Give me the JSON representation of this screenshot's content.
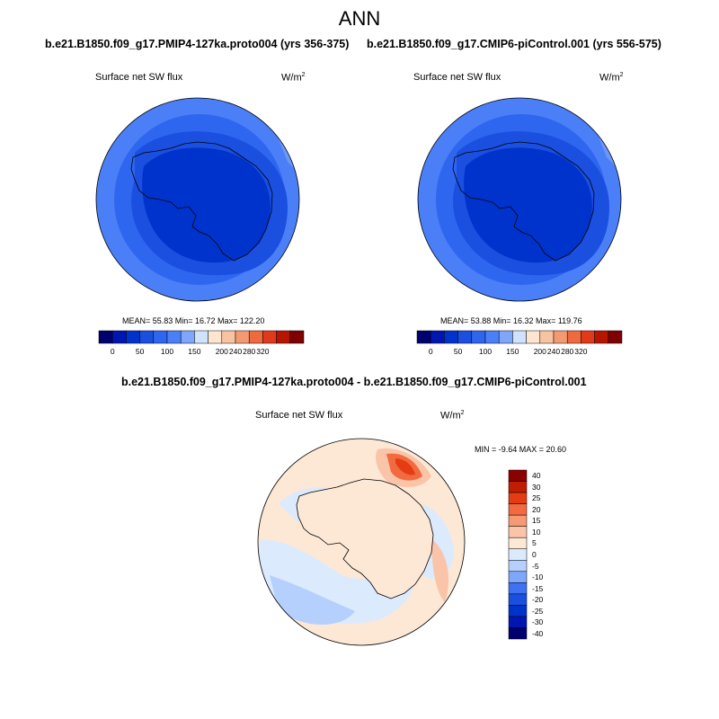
{
  "title": "ANN",
  "panels": [
    {
      "header": "b.e21.B1850.f09_g17.PMIP4-127ka.proto004 (yrs 356-375)",
      "variable": "Surface net SW flux",
      "units_base": "W/m",
      "units_exp": "2",
      "stats": "MEAN=  55.83  Min=  16.72  Max= 122.20"
    },
    {
      "header": "b.e21.B1850.f09_g17.CMIP6-piControl.001 (yrs 556-575)",
      "variable": "Surface net SW flux",
      "units_base": "W/m",
      "units_exp": "2",
      "stats": "MEAN=  53.88  Min=  16.32  Max= 119.76"
    },
    {
      "header": "b.e21.B1850.f09_g17.PMIP4-127ka.proto004 - b.e21.B1850.f09_g17.CMIP6-piControl.001",
      "variable": "Surface net SW flux",
      "units_base": "W/m",
      "units_exp": "2",
      "stats": "MIN = -9.64 MAX =  20.60"
    }
  ],
  "colorbars": {
    "abs_colors": [
      "#00006e",
      "#0016b3",
      "#0033cc",
      "#1a4fe0",
      "#2f66f0",
      "#4a7ff7",
      "#7ea6fb",
      "#cfe3ff",
      "#fde5cf",
      "#f8c3a1",
      "#f39a72",
      "#ef6a3f",
      "#e03a1a",
      "#b81500",
      "#7f0000"
    ],
    "abs_tick_labels": [
      "0",
      "50",
      "100",
      "150",
      "200",
      "240",
      "280",
      "320"
    ],
    "diff_colors": [
      "#00006e",
      "#0016b3",
      "#0033cc",
      "#1a4fe0",
      "#3f72f2",
      "#7ea6fb",
      "#b5d0fc",
      "#dbeafd",
      "#fde8d6",
      "#f9c4a8",
      "#f59a74",
      "#f26a3f",
      "#e63c13",
      "#c01e00",
      "#8b0000"
    ],
    "diff_tick_labels": [
      "-40",
      "-30",
      "-25",
      "-20",
      "-15",
      "-10",
      "-5",
      "0",
      "5",
      "10",
      "15",
      "20",
      "25",
      "30",
      "40"
    ]
  },
  "chart_data": [
    {
      "type": "heatmap",
      "title": "Surface net SW flux",
      "units": "W/m2",
      "projection": "south polar stereographic",
      "mean": 55.83,
      "min": 16.72,
      "max": 122.2,
      "contour_levels": [
        0,
        25,
        50,
        75,
        100,
        125,
        150,
        175,
        200,
        220,
        240,
        260,
        280,
        300,
        320
      ]
    },
    {
      "type": "heatmap",
      "title": "Surface net SW flux",
      "units": "W/m2",
      "projection": "south polar stereographic",
      "mean": 53.88,
      "min": 16.32,
      "max": 119.76,
      "contour_levels": [
        0,
        25,
        50,
        75,
        100,
        125,
        150,
        175,
        200,
        220,
        240,
        260,
        280,
        300,
        320
      ]
    },
    {
      "type": "heatmap",
      "title": "Surface net SW flux",
      "units": "W/m2",
      "projection": "south polar stereographic",
      "min": -9.64,
      "max": 20.6,
      "contour_levels": [
        -40,
        -30,
        -25,
        -20,
        -15,
        -10,
        -5,
        0,
        5,
        10,
        15,
        20,
        25,
        30,
        40
      ]
    }
  ]
}
